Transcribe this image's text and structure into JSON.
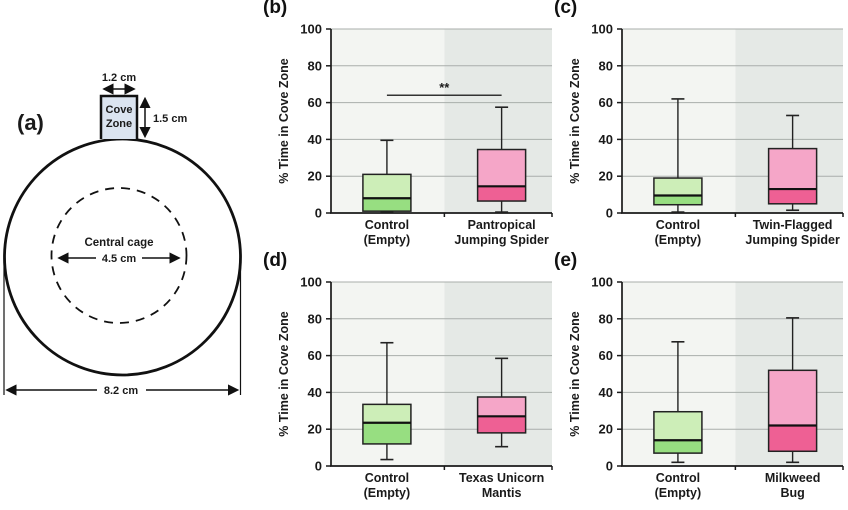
{
  "figure": {
    "panel_a": {
      "label": "(a)",
      "cove_zone_line1": "Cove",
      "cove_zone_line2": "Zone",
      "cove_width_label": "1.2 cm",
      "cove_height_label": "1.5 cm",
      "central_cage_label": "Central cage",
      "central_cage_diameter_label": "4.5 cm",
      "arena_diameter_label": "8.2 cm"
    }
  },
  "style": {
    "green_light": "#cdeeb8",
    "green_dark": "#97de81",
    "pink_light": "#f5a6c8",
    "pink_dark": "#ee6094",
    "bg_left": "#f3f5f2",
    "bg_right": "#e5e9e6",
    "grid": "#a9aeab",
    "box_stroke": "#222222",
    "axis": "#1a1a1a",
    "median": "#111111",
    "cove_fill": "#dbe4f0"
  },
  "chart_data": [
    {
      "panel": "(b)",
      "id": "b",
      "type": "box",
      "title": "",
      "xlabel": "",
      "ylabel": "% Time in Cove Zone",
      "ylim": [
        0,
        100
      ],
      "yticks": [
        0,
        20,
        40,
        60,
        80,
        100
      ],
      "grid": true,
      "groups": [
        {
          "label_lines": [
            "Control",
            "(Empty)"
          ],
          "scheme": "green",
          "whisker_low": 0.5,
          "q1": 1,
          "median": 8,
          "q3": 21,
          "whisker_high": 39.5
        },
        {
          "label_lines": [
            "Pantropical",
            "Jumping Spider"
          ],
          "scheme": "pink",
          "whisker_low": 0.5,
          "q1": 6.5,
          "median": 14.5,
          "q3": 34.5,
          "whisker_high": 57.5
        }
      ],
      "significance": {
        "label": "**",
        "y": 64
      }
    },
    {
      "panel": "(c)",
      "id": "c",
      "type": "box",
      "title": "",
      "xlabel": "",
      "ylabel": "% Time in Cove Zone",
      "ylim": [
        0,
        100
      ],
      "yticks": [
        0,
        20,
        40,
        60,
        80,
        100
      ],
      "grid": true,
      "groups": [
        {
          "label_lines": [
            "Control",
            "(Empty)"
          ],
          "scheme": "green",
          "whisker_low": 0.5,
          "q1": 4.5,
          "median": 9.5,
          "q3": 19,
          "whisker_high": 62
        },
        {
          "label_lines": [
            "Twin-Flagged",
            "Jumping Spider"
          ],
          "scheme": "pink",
          "whisker_low": 1.5,
          "q1": 5,
          "median": 13,
          "q3": 35,
          "whisker_high": 53
        }
      ],
      "significance": null
    },
    {
      "panel": "(d)",
      "id": "d",
      "type": "box",
      "title": "",
      "xlabel": "",
      "ylabel": "% Time in Cove Zone",
      "ylim": [
        0,
        100
      ],
      "yticks": [
        0,
        20,
        40,
        60,
        80,
        100
      ],
      "grid": true,
      "groups": [
        {
          "label_lines": [
            "Control",
            "(Empty)"
          ],
          "scheme": "green",
          "whisker_low": 3.5,
          "q1": 12,
          "median": 23.5,
          "q3": 33.5,
          "whisker_high": 67
        },
        {
          "label_lines": [
            "Texas Unicorn",
            "Mantis"
          ],
          "scheme": "pink",
          "whisker_low": 10.5,
          "q1": 18,
          "median": 27,
          "q3": 37.5,
          "whisker_high": 58.5
        }
      ],
      "significance": null
    },
    {
      "panel": "(e)",
      "id": "e",
      "type": "box",
      "title": "",
      "xlabel": "",
      "ylabel": "% Time in Cove Zone",
      "ylim": [
        0,
        100
      ],
      "yticks": [
        0,
        20,
        40,
        60,
        80,
        100
      ],
      "grid": true,
      "groups": [
        {
          "label_lines": [
            "Control",
            "(Empty)"
          ],
          "scheme": "green",
          "whisker_low": 2,
          "q1": 7,
          "median": 14,
          "q3": 29.5,
          "whisker_high": 67.5
        },
        {
          "label_lines": [
            "Milkweed",
            "Bug"
          ],
          "scheme": "pink",
          "whisker_low": 2,
          "q1": 8,
          "median": 22,
          "q3": 52,
          "whisker_high": 80.5
        }
      ],
      "significance": null
    }
  ]
}
